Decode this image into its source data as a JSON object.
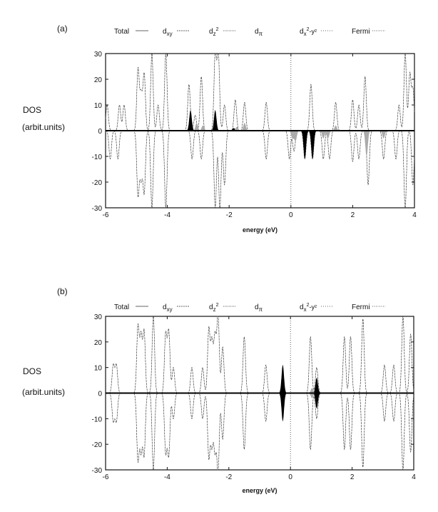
{
  "chart_data": [
    {
      "panel_label": "(a)",
      "type": "line",
      "xlabel": "energy (eV)",
      "ylabel": "DOS",
      "ylabel_units": "(arbit.units)",
      "xlim": [
        -6,
        4
      ],
      "ylim": [
        -30,
        30
      ],
      "xticks": [
        "-6",
        "-4",
        "-2",
        "0",
        "2",
        "4"
      ],
      "yticks": [
        "30",
        "20",
        "10",
        "0",
        "-10",
        "-20",
        "-30"
      ],
      "grid": false,
      "legend_position": "top",
      "legend": [
        {
          "base": "Total",
          "sub": "",
          "sup": "",
          "rest": ""
        },
        {
          "base": "d",
          "sub": "xy",
          "sup": "",
          "rest": ""
        },
        {
          "base": "d",
          "sub": "z",
          "sup": "2",
          "rest": ""
        },
        {
          "base": "d",
          "sub": "π",
          "sup": "",
          "rest": ""
        },
        {
          "base": "d",
          "sub": "x",
          "sup": "2",
          "rest": "-y²"
        },
        {
          "base": "Fermi",
          "sub": "",
          "sup": "",
          "rest": ""
        }
      ],
      "fermi_energy": 0,
      "series": [
        {
          "name": "Total",
          "style": "line",
          "peaks": [
            [
              -5.95,
              10
            ],
            [
              -5.55,
              10
            ],
            [
              -5.4,
              10
            ],
            [
              -4.95,
              24
            ],
            [
              -4.75,
              22
            ],
            [
              -4.85,
              14
            ],
            [
              -4.5,
              30
            ],
            [
              -4.05,
              30
            ],
            [
              -4.3,
              10
            ],
            [
              -3.3,
              18
            ],
            [
              -3.1,
              6
            ],
            [
              -2.9,
              21
            ],
            [
              -2.45,
              30
            ],
            [
              -2.35,
              30
            ],
            [
              -2.15,
              10
            ],
            [
              -1.8,
              12
            ],
            [
              -1.5,
              11
            ],
            [
              -0.8,
              11
            ],
            [
              0.65,
              18
            ],
            [
              1.45,
              11
            ],
            [
              2.0,
              12
            ],
            [
              2.2,
              10
            ],
            [
              2.4,
              21
            ],
            [
              3.5,
              10
            ],
            [
              3.7,
              30
            ],
            [
              3.85,
              22
            ],
            [
              3.95,
              16
            ],
            [
              -5.85,
              -11
            ],
            [
              -5.6,
              -11
            ],
            [
              -4.95,
              -25
            ],
            [
              -4.75,
              -24
            ],
            [
              -4.85,
              -18
            ],
            [
              -4.5,
              -30
            ],
            [
              -4.05,
              -30
            ],
            [
              -3.2,
              -11
            ],
            [
              -2.9,
              -11
            ],
            [
              -2.45,
              -30
            ],
            [
              -2.3,
              -30
            ],
            [
              -2.15,
              -21
            ],
            [
              -0.8,
              -11
            ],
            [
              -0.05,
              -11
            ],
            [
              0.1,
              -8
            ],
            [
              0.45,
              -11
            ],
            [
              0.7,
              -11
            ],
            [
              1.05,
              -11
            ],
            [
              1.25,
              -11
            ],
            [
              2.0,
              -12
            ],
            [
              2.2,
              -11
            ],
            [
              2.5,
              -21
            ],
            [
              3.0,
              -11
            ],
            [
              3.4,
              -11
            ],
            [
              3.7,
              -30
            ],
            [
              3.95,
              -21
            ]
          ]
        },
        {
          "style": "filled-black",
          "peaks": [
            [
              -3.25,
              8
            ],
            [
              -2.45,
              8
            ],
            [
              0.45,
              -11
            ],
            [
              0.7,
              -11
            ],
            [
              -1.85,
              1
            ]
          ]
        },
        {
          "style": "filled-gray",
          "peaks": [
            [
              -3.05,
              3
            ],
            [
              -2.85,
              2
            ],
            [
              -1.75,
              1.5
            ],
            [
              -1.5,
              3
            ],
            [
              1.45,
              2
            ],
            [
              0.05,
              -3
            ],
            [
              0.15,
              -4
            ],
            [
              1.05,
              -3
            ],
            [
              1.2,
              -3
            ],
            [
              2.45,
              -10
            ],
            [
              3.0,
              -3
            ]
          ]
        }
      ]
    },
    {
      "panel_label": "(b)",
      "type": "line",
      "xlabel": "energy (eV)",
      "ylabel": "DOS",
      "ylabel_units": "(arbit.units)",
      "xlim": [
        -6,
        4
      ],
      "ylim": [
        -30,
        30
      ],
      "xticks": [
        "-6",
        "-4",
        "-2",
        "0",
        "2",
        "4"
      ],
      "yticks": [
        "30",
        "20",
        "10",
        "0",
        "-10",
        "-20",
        "-30"
      ],
      "grid": false,
      "legend_position": "top",
      "legend": [
        {
          "base": "Total",
          "sub": "",
          "sup": "",
          "rest": ""
        },
        {
          "base": "d",
          "sub": "xy",
          "sup": "",
          "rest": ""
        },
        {
          "base": "d",
          "sub": "z",
          "sup": "2",
          "rest": ""
        },
        {
          "base": "d",
          "sub": "π",
          "sup": "",
          "rest": ""
        },
        {
          "base": "d",
          "sub": "x",
          "sup": "2",
          "rest": "-y²"
        },
        {
          "base": "Fermi",
          "sub": "",
          "sup": "",
          "rest": ""
        }
      ],
      "fermi_energy": 0,
      "series": [
        {
          "name": "Total",
          "style": "line",
          "peaks": [
            [
              -5.75,
              11
            ],
            [
              -5.65,
              11
            ],
            [
              -4.95,
              26
            ],
            [
              -4.85,
              22
            ],
            [
              -4.75,
              24
            ],
            [
              -4.45,
              30
            ],
            [
              -4.05,
              23
            ],
            [
              -3.95,
              24
            ],
            [
              -3.8,
              10
            ],
            [
              -3.2,
              10
            ],
            [
              -2.85,
              10
            ],
            [
              -2.65,
              25
            ],
            [
              -2.55,
              20
            ],
            [
              -2.45,
              22
            ],
            [
              -2.35,
              30
            ],
            [
              -2.2,
              18
            ],
            [
              -1.5,
              22
            ],
            [
              -0.8,
              11
            ],
            [
              0.65,
              22
            ],
            [
              0.85,
              10
            ],
            [
              1.75,
              22
            ],
            [
              1.95,
              22
            ],
            [
              2.35,
              29
            ],
            [
              3.05,
              11
            ],
            [
              3.35,
              11
            ],
            [
              3.65,
              30
            ],
            [
              3.9,
              23
            ],
            [
              -5.75,
              -11
            ],
            [
              -5.65,
              -11
            ],
            [
              -4.95,
              -26
            ],
            [
              -4.85,
              -22
            ],
            [
              -4.75,
              -24
            ],
            [
              -4.45,
              -30
            ],
            [
              -4.05,
              -23
            ],
            [
              -3.95,
              -24
            ],
            [
              -3.8,
              -10
            ],
            [
              -3.2,
              -10
            ],
            [
              -2.85,
              -10
            ],
            [
              -2.65,
              -25
            ],
            [
              -2.55,
              -20
            ],
            [
              -2.45,
              -22
            ],
            [
              -2.35,
              -30
            ],
            [
              -2.2,
              -18
            ],
            [
              -1.5,
              -22
            ],
            [
              -0.8,
              -11
            ],
            [
              0.65,
              -22
            ],
            [
              0.85,
              -10
            ],
            [
              1.75,
              -22
            ],
            [
              1.95,
              -22
            ],
            [
              2.35,
              -29
            ],
            [
              3.05,
              -11
            ],
            [
              3.35,
              -11
            ],
            [
              3.65,
              -30
            ],
            [
              3.9,
              -23
            ]
          ]
        },
        {
          "style": "filled-black",
          "peaks": [
            [
              -0.25,
              11
            ],
            [
              -0.25,
              -11
            ],
            [
              0.85,
              6
            ],
            [
              0.85,
              -6
            ]
          ]
        },
        {
          "style": "filled-gray",
          "peaks": [
            [
              0.7,
              2
            ],
            [
              0.7,
              -2
            ]
          ]
        }
      ]
    }
  ]
}
